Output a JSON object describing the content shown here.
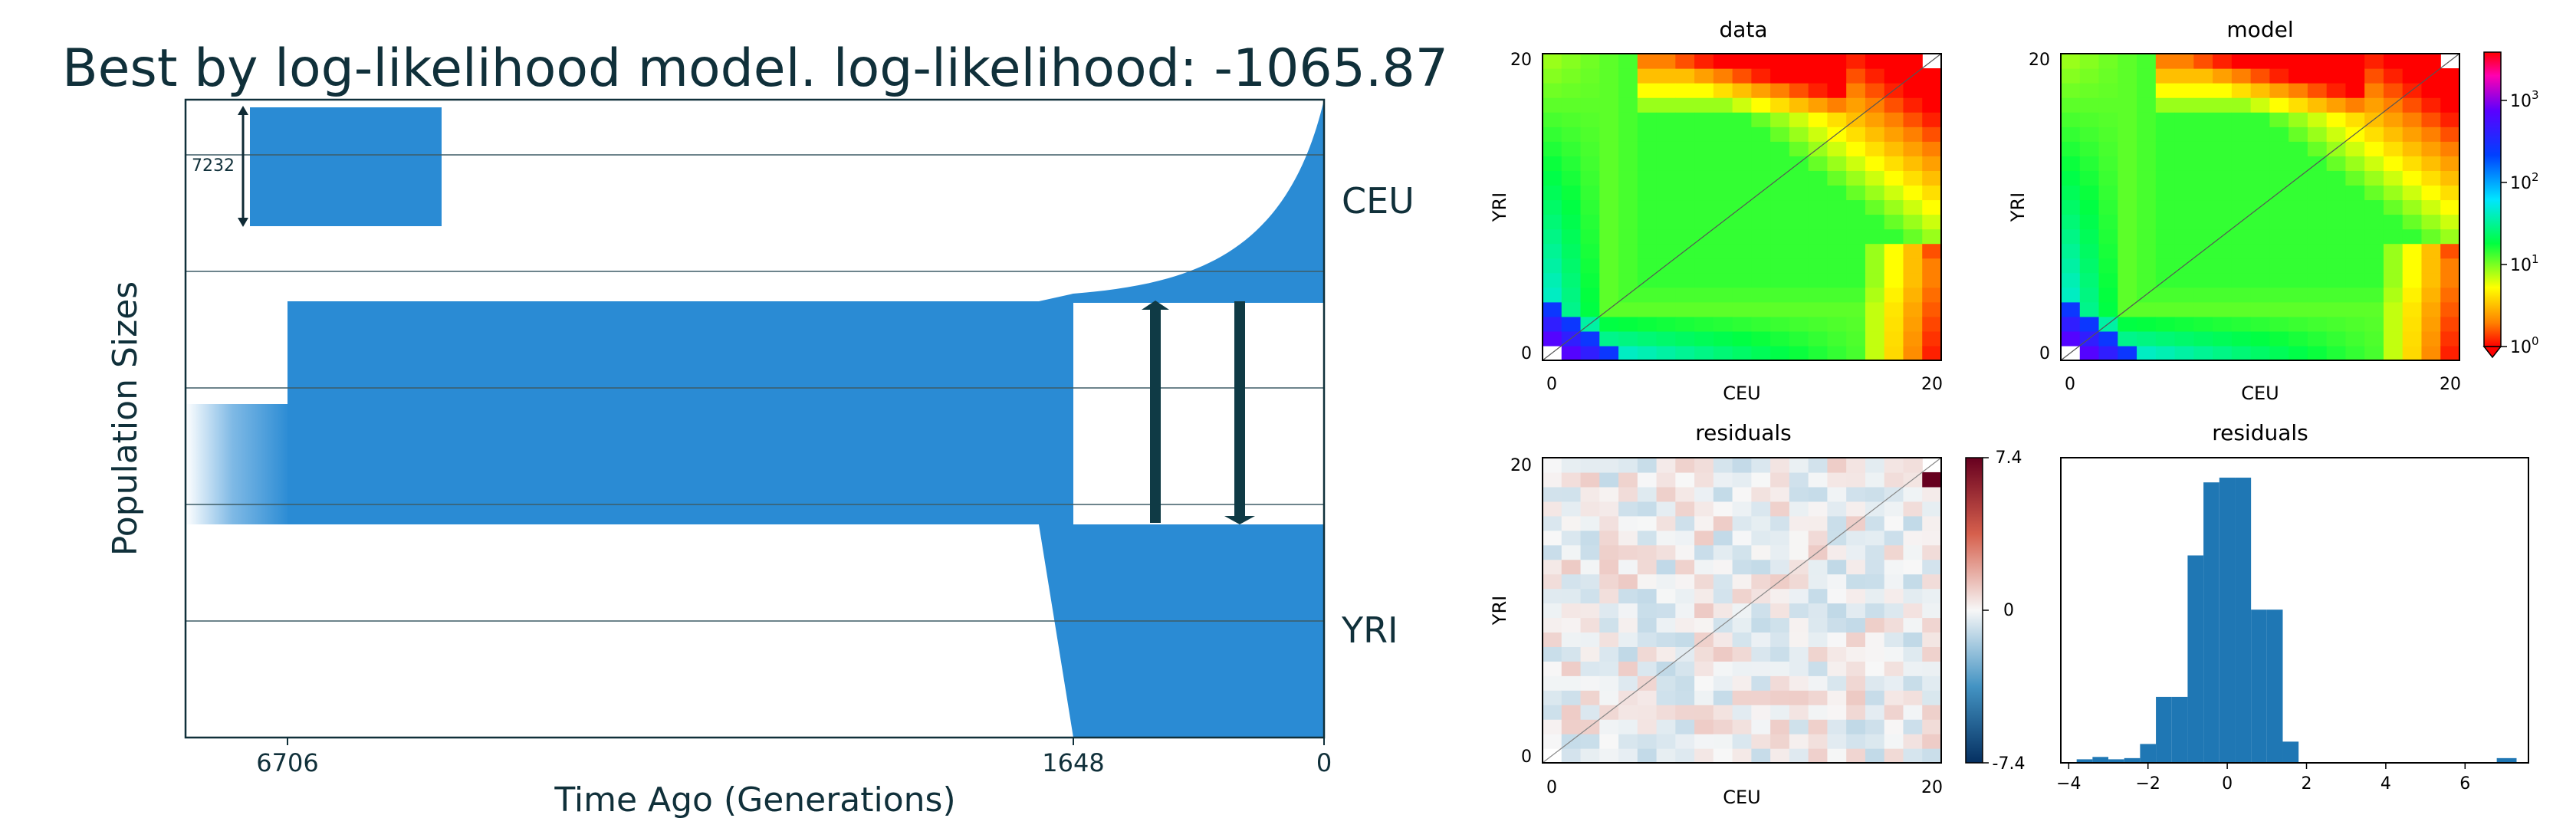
{
  "left": {
    "title": "Best by log-likelihood model. log-likelihood: -1065.87",
    "xlabel": "Time Ago (Generations)",
    "ylabel": "Population Sizes",
    "x_ticks": [
      "6706",
      "1648",
      "0"
    ],
    "pop_labels": [
      "CEU",
      "YRI"
    ],
    "size_annotation": "7232"
  },
  "chart_data": [
    {
      "type": "demographic-model",
      "title": "Best by log-likelihood model. log-likelihood: -1065.87",
      "xlabel": "Time Ago (Generations)",
      "ylabel": "Population Sizes",
      "x_ticks": [
        6706,
        1648,
        0
      ],
      "populations": [
        "CEU",
        "YRI"
      ],
      "events": {
        "ancestral_growth_time": 6706,
        "split_time": 1648
      },
      "size_annotation": 7232,
      "migration_arrows": 2
    },
    {
      "type": "heatmap",
      "title": "data",
      "xlabel": "CEU",
      "ylabel": "YRI",
      "x_ticks": [
        "0",
        "20"
      ],
      "y_ticks": [
        "0",
        "20"
      ],
      "scale": "log"
    },
    {
      "type": "heatmap",
      "title": "model",
      "xlabel": "CEU",
      "ylabel": "YRI",
      "x_ticks": [
        "0",
        "20"
      ],
      "y_ticks": [
        "0",
        "20"
      ],
      "scale": "log",
      "colorbar_ticks": [
        "10^0",
        "10^1",
        "10^2",
        "10^3"
      ]
    },
    {
      "type": "heatmap",
      "title": "residuals",
      "xlabel": "CEU",
      "ylabel": "YRI",
      "x_ticks": [
        "0",
        "20"
      ],
      "y_ticks": [
        "0",
        "20"
      ],
      "colorbar_ticks": [
        "7.4",
        "0",
        "-7.4"
      ],
      "vlim": [
        -7.4,
        7.4
      ]
    },
    {
      "type": "bar",
      "title": "residuals",
      "x_ticks": [
        "−4",
        "−2",
        "0",
        "2",
        "4",
        "6"
      ],
      "xlim": [
        -4.2,
        7.6
      ],
      "bins": [
        {
          "x0": -3.8,
          "x1": -3.4,
          "count": 3
        },
        {
          "x0": -3.4,
          "x1": -3.0,
          "count": 5
        },
        {
          "x0": -3.0,
          "x1": -2.6,
          "count": 3
        },
        {
          "x0": -2.6,
          "x1": -2.2,
          "count": 4
        },
        {
          "x0": -2.2,
          "x1": -1.8,
          "count": 16
        },
        {
          "x0": -1.8,
          "x1": -1.4,
          "count": 56
        },
        {
          "x0": -1.4,
          "x1": -1.0,
          "count": 56
        },
        {
          "x0": -1.0,
          "x1": -0.6,
          "count": 176
        },
        {
          "x0": -0.6,
          "x1": -0.2,
          "count": 238
        },
        {
          "x0": -0.2,
          "x1": 0.2,
          "count": 242
        },
        {
          "x0": 0.2,
          "x1": 0.6,
          "count": 242
        },
        {
          "x0": 0.6,
          "x1": 1.0,
          "count": 130
        },
        {
          "x0": 1.0,
          "x1": 1.4,
          "count": 130
        },
        {
          "x0": 1.4,
          "x1": 1.8,
          "count": 18
        },
        {
          "x0": 6.8,
          "x1": 7.3,
          "count": 4
        }
      ]
    }
  ],
  "panels": {
    "data": {
      "title": "data",
      "xlabel": "CEU",
      "ylabel": "YRI",
      "x0": "0",
      "x1": "20",
      "y0": "0",
      "y1": "20"
    },
    "model": {
      "title": "model",
      "xlabel": "CEU",
      "ylabel": "YRI",
      "x0": "0",
      "x1": "20",
      "y0": "0",
      "y1": "20"
    },
    "residuals": {
      "title": "residuals",
      "xlabel": "CEU",
      "ylabel": "YRI",
      "x0": "0",
      "x1": "20",
      "y0": "0",
      "y1": "20"
    },
    "hist": {
      "title": "residuals"
    }
  },
  "colorbars": {
    "model_ticks": [
      "10",
      "10",
      "10",
      "10"
    ],
    "model_exps": [
      "0",
      "1",
      "2",
      "3"
    ],
    "resid_ticks": [
      "7.4",
      "0",
      "-7.4"
    ]
  },
  "colors": {
    "population_fill": "#2a8bd4",
    "arrow": "#0f3a45",
    "hist_bar": "#1f77b4"
  }
}
